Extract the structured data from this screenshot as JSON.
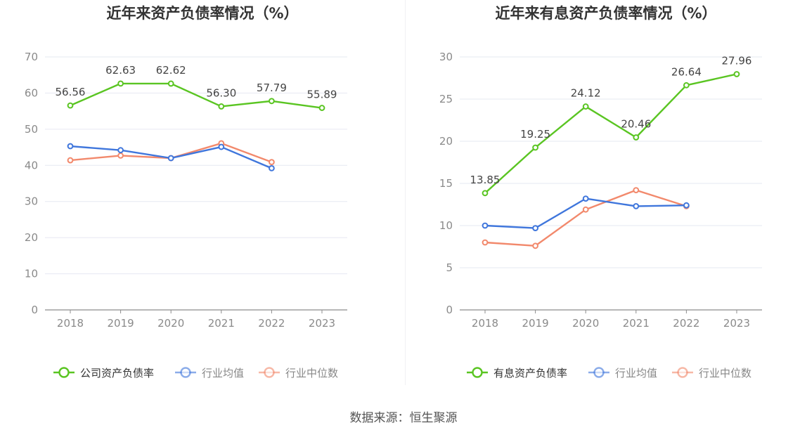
{
  "source": "数据来源：恒生聚源",
  "colors": {
    "company": "#5ac522",
    "avg": "#3f76dc",
    "median": "#f2896c"
  },
  "chart_data": [
    {
      "type": "line",
      "title": "近年来资产负债率情况（%）",
      "xlabel": "",
      "ylabel": "",
      "categories": [
        "2018",
        "2019",
        "2020",
        "2021",
        "2022",
        "2023"
      ],
      "yticks": [
        0,
        10,
        20,
        30,
        40,
        50,
        60,
        70
      ],
      "ylim": [
        0,
        70
      ],
      "grid": true,
      "legend_position": "bottom",
      "series": [
        {
          "name": "公司资产负债率",
          "color": "#5ac522",
          "labeled": true,
          "values": [
            56.56,
            62.63,
            62.62,
            56.3,
            57.79,
            55.89
          ],
          "labels": [
            "56.56",
            "62.63",
            "62.62",
            "56.30",
            "57.79",
            "55.89"
          ]
        },
        {
          "name": "行业均值",
          "color": "#3f76dc",
          "labeled": false,
          "values": [
            45.3,
            44.2,
            42.0,
            45.1,
            39.2,
            null
          ]
        },
        {
          "name": "行业中位数",
          "color": "#f2896c",
          "labeled": false,
          "values": [
            41.4,
            42.7,
            42.0,
            46.1,
            40.9,
            null
          ]
        }
      ]
    },
    {
      "type": "line",
      "title": "近年来有息资产负债率情况（%）",
      "xlabel": "",
      "ylabel": "",
      "categories": [
        "2018",
        "2019",
        "2020",
        "2021",
        "2022",
        "2023"
      ],
      "yticks": [
        0,
        5,
        10,
        15,
        20,
        25,
        30
      ],
      "ylim": [
        0,
        30
      ],
      "grid": true,
      "legend_position": "bottom",
      "series": [
        {
          "name": "有息资产负债率",
          "color": "#5ac522",
          "labeled": true,
          "values": [
            13.85,
            19.25,
            24.12,
            20.46,
            26.64,
            27.96
          ],
          "labels": [
            "13.85",
            "19.25",
            "24.12",
            "20.46",
            "26.64",
            "27.96"
          ]
        },
        {
          "name": "行业均值",
          "color": "#3f76dc",
          "labeled": false,
          "values": [
            10.0,
            9.7,
            13.2,
            12.3,
            12.4,
            null
          ]
        },
        {
          "name": "行业中位数",
          "color": "#f2896c",
          "labeled": false,
          "values": [
            8.0,
            7.6,
            11.9,
            14.2,
            12.3,
            null
          ]
        }
      ]
    }
  ]
}
